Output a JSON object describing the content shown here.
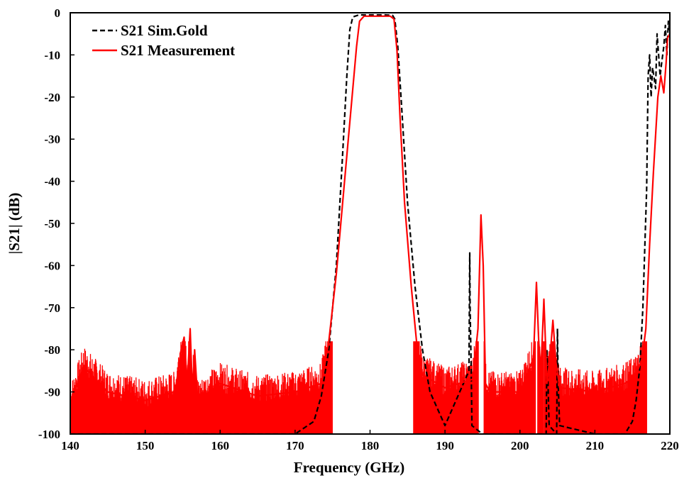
{
  "chart_data": {
    "type": "line",
    "title": "",
    "xlabel": "Frequency (GHz)",
    "ylabel": "|S21| (dB)",
    "xlim": [
      140,
      220
    ],
    "ylim": [
      -100,
      0
    ],
    "xticks": [
      140,
      150,
      160,
      170,
      180,
      190,
      200,
      210,
      220
    ],
    "yticks": [
      0,
      -10,
      -20,
      -30,
      -40,
      -50,
      -60,
      -70,
      -80,
      -90,
      -100
    ],
    "grid": false,
    "legend_position": "top-left",
    "series": [
      {
        "name": "S21 Sim.Gold",
        "color": "#000000",
        "dash": "dashed",
        "x": [
          140,
          150,
          160,
          165,
          170,
          172.5,
          173.5,
          174.5,
          175.5,
          176.3,
          176.9,
          177.3,
          177.7,
          178.5,
          180,
          182,
          183,
          183.3,
          183.7,
          184.2,
          185,
          186,
          187,
          188,
          190,
          193.2,
          193.3,
          193.35,
          193.5,
          193.6,
          195,
          200,
          203.5,
          203.6,
          203.7,
          203.9,
          204.9,
          205,
          205.1,
          205.3,
          210,
          214,
          215,
          215.5,
          216,
          216.4,
          216.9,
          217.1,
          217.3,
          217.5,
          217.7,
          218.1,
          218.3,
          218.5,
          218.7,
          218.9,
          219.2,
          219.4,
          219.6,
          219.8,
          220
        ],
        "y": [
          -100,
          -100,
          -100,
          -100,
          -100,
          -97,
          -91,
          -80,
          -60,
          -35,
          -15,
          -4,
          -1,
          -0.5,
          -0.5,
          -0.5,
          -0.6,
          -1.5,
          -8,
          -22,
          -45,
          -65,
          -80,
          -90,
          -98,
          -85,
          -57,
          -70,
          -85,
          -98,
          -100,
          -100,
          -100,
          -80,
          -85,
          -98,
          -100,
          -75,
          -88,
          -98,
          -100,
          -100,
          -97,
          -92,
          -84,
          -70,
          -42,
          -15,
          -10,
          -20,
          -13,
          -18,
          -5,
          -10,
          -15,
          -12,
          -8,
          -3,
          -10,
          -2,
          -5
        ]
      },
      {
        "name": "S21 Measurement",
        "color": "#ff0000",
        "dash": "solid",
        "x": [
          140,
          141.8,
          145,
          150,
          154,
          154.8,
          155.2,
          155.6,
          156,
          156.3,
          156.6,
          157,
          160,
          165,
          170,
          173.5,
          174.5,
          175.5,
          176.5,
          177.5,
          178.2,
          178.6,
          179.2,
          181,
          182.7,
          183.2,
          183.6,
          184,
          184.6,
          185.5,
          186.2,
          187,
          190,
          193.7,
          194.4,
          194.8,
          195.1,
          195.4,
          196,
          200,
          201.8,
          202.2,
          202.5,
          202.8,
          203.2,
          203.6,
          204,
          204.4,
          204.8,
          205.3,
          210,
          214,
          215.5,
          216.3,
          216.8,
          217.3,
          217.8,
          218.4,
          218.8,
          219.2,
          219.5,
          219.7,
          220
        ],
        "y": [
          -93,
          -84,
          -90,
          -92,
          -90,
          -80,
          -77,
          -88,
          -75,
          -90,
          -80,
          -92,
          -88,
          -91,
          -90,
          -88,
          -78,
          -62,
          -42,
          -22,
          -8,
          -2,
          -0.8,
          -0.8,
          -0.8,
          -1.5,
          -9,
          -25,
          -45,
          -65,
          -78,
          -86,
          -89,
          -87,
          -75,
          -48,
          -60,
          -88,
          -90,
          -90,
          -82,
          -64,
          -78,
          -85,
          -68,
          -88,
          -82,
          -73,
          -83,
          -89,
          -90,
          -88,
          -86,
          -82,
          -75,
          -55,
          -38,
          -20,
          -15,
          -19,
          -12,
          -6,
          -5
        ]
      }
    ]
  }
}
